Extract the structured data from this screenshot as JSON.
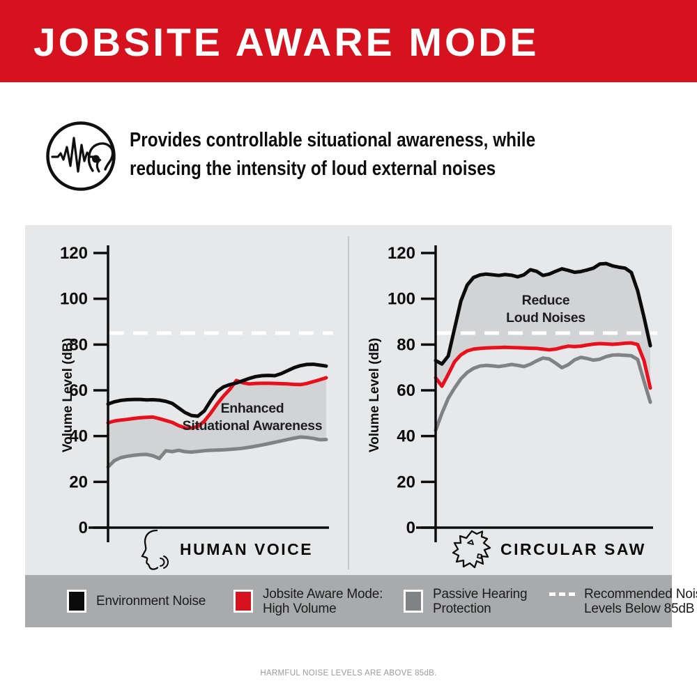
{
  "header": {
    "title": "JOBSITE AWARE MODE"
  },
  "intro": {
    "icon": "ear-soundwave-icon",
    "lines": [
      "Provides controllable situational awareness, while",
      "reducing the intensity of loud external noises"
    ]
  },
  "colors": {
    "brand_red": "#D6121E",
    "line_red": "#E8101C",
    "line_black": "#0B0B0C",
    "line_gray": "#808285",
    "panel_bg": "#E7E8E9",
    "band_fill": "#D2D3D5",
    "legend_bg": "#A8AAAC",
    "threshold_white": "#FFFFFF"
  },
  "chart_data": [
    {
      "type": "line",
      "title": "HUMAN VOICE",
      "icon": "speaking-face-icon",
      "ylabel": "Volume Level (dB)",
      "ylim": [
        0,
        120
      ],
      "yticks": [
        0,
        20,
        40,
        60,
        80,
        100,
        120
      ],
      "grid": false,
      "threshold": {
        "value": 85,
        "style": "dashed-white"
      },
      "annotation": {
        "lines": [
          "Enhanced",
          "Situational Awareness"
        ],
        "x": 362,
        "y": 592,
        "line_height": 25
      },
      "band": {
        "top": "Jobsite Aware Mode: High Volume",
        "bottom": "Passive Hearing Protection"
      },
      "series": [
        {
          "name": "Environment Noise",
          "color": "#0B0B0C",
          "values": [
            54,
            55,
            55.6,
            55.9,
            56,
            56,
            55.8,
            55.9,
            55.7,
            55.2,
            54.3,
            52.3,
            50.3,
            49,
            48.7,
            51,
            55.5,
            59.5,
            61.5,
            62.5,
            63.2,
            64.2,
            65.2,
            66,
            66.4,
            66.5,
            66.4,
            67.3,
            68.6,
            69.9,
            70.8,
            71.3,
            71.4,
            71,
            70.6
          ]
        },
        {
          "name": "Jobsite Aware Mode: High Volume",
          "color": "#E8101C",
          "values": [
            45.8,
            46.6,
            47,
            47.3,
            47.7,
            48,
            48.2,
            48.3,
            47.6,
            46.8,
            46,
            44.6,
            43.6,
            43.5,
            44.2,
            46.5,
            50,
            54,
            57.5,
            60.5,
            64.3,
            63.3,
            62.8,
            63,
            63.1,
            63.1,
            63,
            62.9,
            62.8,
            62.6,
            62.5,
            63,
            63.8,
            64.6,
            65.5
          ]
        },
        {
          "name": "Passive Hearing Protection",
          "color": "#808285",
          "values": [
            26.5,
            29.3,
            30.6,
            31.2,
            31.6,
            31.9,
            32,
            31.4,
            30.2,
            33.6,
            33.2,
            33.8,
            33.2,
            33,
            33.3,
            33.6,
            33.8,
            33.9,
            34,
            34.2,
            34.4,
            34.7,
            35.1,
            35.6,
            36.1,
            36.7,
            37.3,
            37.9,
            38.5,
            39.1,
            39.6,
            39.4,
            39,
            38.4,
            38.5
          ]
        }
      ]
    },
    {
      "type": "line",
      "title": "CIRCULAR SAW",
      "icon": "circular-saw-icon",
      "ylabel": "Volume Level (dB)",
      "ylim": [
        0,
        120
      ],
      "yticks": [
        0,
        20,
        40,
        60,
        80,
        100,
        120
      ],
      "grid": false,
      "threshold": {
        "value": 85,
        "style": "dashed-white"
      },
      "annotation": {
        "lines": [
          "Reduce",
          "Loud Noises"
        ],
        "x": 783,
        "y": 437,
        "line_height": 25
      },
      "band": {
        "top": "Environment Noise",
        "bottom": "Jobsite Aware Mode: High Volume"
      },
      "series": [
        {
          "name": "Environment Noise",
          "color": "#0B0B0C",
          "values": [
            73,
            71.5,
            75,
            87,
            99,
            106,
            109.3,
            110.4,
            110.8,
            110.5,
            110.2,
            110.6,
            110.3,
            109.6,
            110.5,
            112.7,
            112,
            110.2,
            110.8,
            112,
            113.1,
            112.4,
            111.6,
            111.9,
            112.6,
            113.4,
            115.2,
            115.4,
            114.4,
            113.8,
            113.4,
            111.5,
            103.5,
            92,
            79.5
          ]
        },
        {
          "name": "Jobsite Aware Mode: High Volume",
          "color": "#E8101C",
          "values": [
            65.5,
            61.8,
            67,
            72.5,
            75.5,
            77.2,
            78,
            78.3,
            78.5,
            78.6,
            78.7,
            78.8,
            78.7,
            78.6,
            78.5,
            78.4,
            78.3,
            78,
            77.7,
            78,
            78.7,
            79.3,
            79.1,
            79.3,
            79.8,
            80.2,
            80.4,
            80.3,
            80.1,
            80.3,
            80.6,
            80.7,
            80,
            73,
            61
          ]
        },
        {
          "name": "Passive Hearing Protection",
          "color": "#808285",
          "values": [
            42.5,
            50,
            56.5,
            61,
            65,
            67.8,
            69.6,
            70.6,
            70.9,
            70.7,
            70.4,
            70.8,
            71.3,
            70.9,
            70.4,
            71.4,
            72.9,
            74.1,
            73.7,
            71.9,
            69.9,
            71.2,
            73.3,
            74.4,
            73.9,
            73.2,
            73.6,
            74.7,
            75.4,
            75.5,
            75.3,
            75.1,
            73.5,
            64,
            54.8
          ]
        }
      ]
    }
  ],
  "legend": {
    "items": [
      {
        "swatch": "black-square",
        "lines": [
          "Environment Noise"
        ]
      },
      {
        "swatch": "red-square",
        "lines": [
          "Jobsite Aware Mode:",
          "High Volume"
        ]
      },
      {
        "swatch": "gray-square",
        "lines": [
          "Passive Hearing",
          "Protection"
        ]
      },
      {
        "swatch": "white-dash",
        "lines": [
          "Recommended Noise",
          "Levels Below 85dB"
        ]
      }
    ]
  },
  "footer": {
    "note": "HARMFUL NOISE LEVELS ARE ABOVE 85dB."
  }
}
